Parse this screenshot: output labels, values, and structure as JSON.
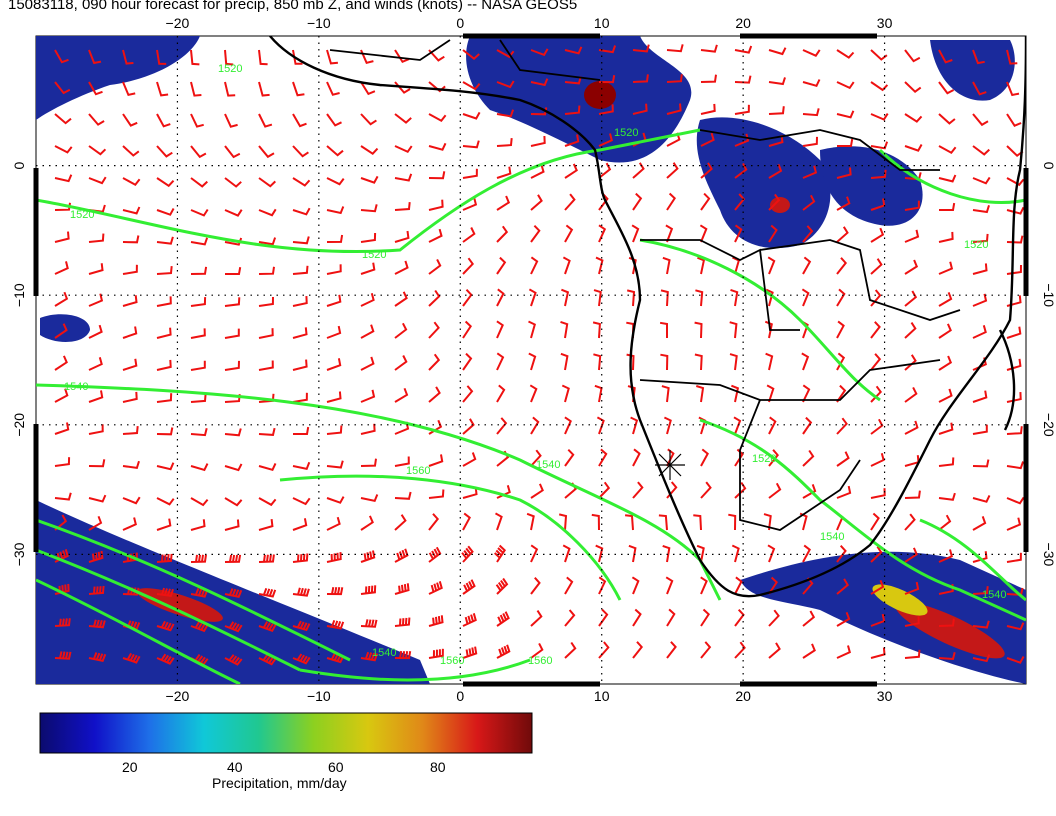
{
  "title": "15083118, 090 hour forecast for precip, 850 mb Z, and winds (knots) -- NASA GEOS5",
  "map": {
    "lon_ticks": [
      -20,
      -10,
      0,
      10,
      20,
      30
    ],
    "lat_ticks": [
      0,
      -10,
      -20,
      -30
    ],
    "lon_range": [
      -30,
      40
    ],
    "lat_range": [
      -40,
      10
    ],
    "contour_labels": [
      "1520",
      "1520",
      "1520",
      "1520",
      "1540",
      "1540",
      "1560",
      "1520",
      "1540",
      "1560",
      "1560",
      "1540",
      "1520",
      "1540"
    ],
    "colors": {
      "precip_low": "#1a2a9c",
      "precip_high": "#8b0000",
      "contours": "#33ee33",
      "wind_barbs": "#ee1111",
      "coastline": "#000000"
    }
  },
  "colorbar": {
    "ticks": [
      "20",
      "40",
      "60",
      "80"
    ],
    "caption": "Precipitation, mm/day",
    "colors": [
      "#0b0b6e",
      "#1010c8",
      "#1e6fe8",
      "#10c8d8",
      "#20c890",
      "#8cd020",
      "#d8c810",
      "#e08818",
      "#d81818",
      "#700a0a"
    ]
  }
}
